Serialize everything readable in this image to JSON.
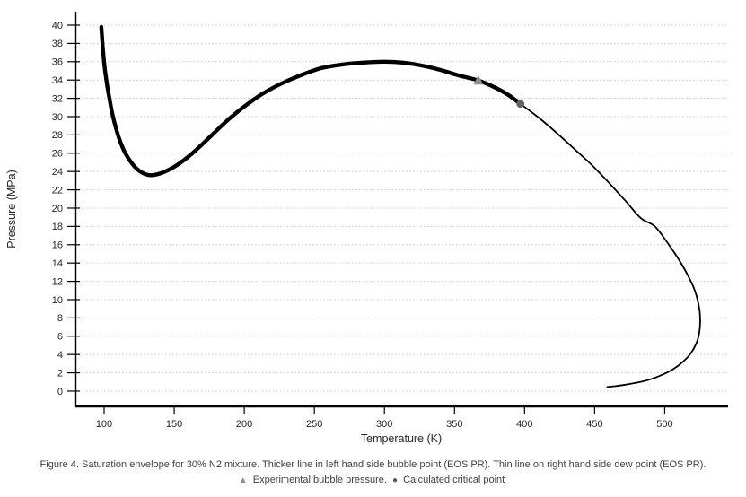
{
  "figure": {
    "caption_line1": "Figure 4. Saturation envelope for 30% N2 mixture. Thicker line in left hand side bubble point (EOS PR). Thin line on right hand side dew point (EOS PR).",
    "legend": {
      "triangle_symbol": "▲",
      "triangle_label": "Experimental bubble pressure.",
      "bullet_symbol": "●",
      "bullet_label": "Calculated critical point"
    }
  },
  "chart_data": {
    "type": "line",
    "title": "",
    "xlabel": "Temperature (K)",
    "ylabel": "Pressure (MPa)",
    "xlim": [
      79.5,
      545.2
    ],
    "ylim": [
      -1.67,
      41.47
    ],
    "x_ticks": [
      100,
      150,
      200,
      250,
      300,
      350,
      400,
      450,
      500
    ],
    "y_ticks": [
      0,
      2,
      4,
      6,
      8,
      10,
      12,
      14,
      16,
      18,
      20,
      22,
      24,
      26,
      28,
      30,
      32,
      34,
      36,
      38,
      40
    ],
    "grid": "horizontal dotted only",
    "legend_position": "none (legend described in figure caption)",
    "colors": {
      "curve": "#000000",
      "grid": "#c9c9c9",
      "axis": "#000000",
      "tick_label": "#262626",
      "triangle_marker": "#8f8f8f",
      "critical_marker": "#636363"
    },
    "series": [
      {
        "name": "Bubble point (EOS PR)",
        "style": "thick",
        "stroke_width": 4.4,
        "points": [
          [
            98,
            39.8
          ],
          [
            99.2,
            37.2
          ],
          [
            101,
            34.6
          ],
          [
            103.5,
            32.2
          ],
          [
            106.5,
            29.9
          ],
          [
            110.5,
            27.7
          ],
          [
            115.5,
            25.9
          ],
          [
            122,
            24.5
          ],
          [
            128,
            23.8
          ],
          [
            134,
            23.6
          ],
          [
            142,
            23.9
          ],
          [
            152,
            24.7
          ],
          [
            163,
            26.0
          ],
          [
            175,
            27.7
          ],
          [
            188,
            29.6
          ],
          [
            200,
            31.1
          ],
          [
            212,
            32.4
          ],
          [
            225,
            33.5
          ],
          [
            240,
            34.5
          ],
          [
            255,
            35.3
          ],
          [
            270,
            35.7
          ],
          [
            285,
            35.9
          ],
          [
            300,
            36.0
          ],
          [
            313,
            35.9
          ],
          [
            326,
            35.6
          ],
          [
            340,
            35.1
          ],
          [
            353,
            34.5
          ],
          [
            367,
            33.95
          ],
          [
            380,
            33.1
          ],
          [
            389,
            32.3
          ],
          [
            397,
            31.4
          ]
        ]
      },
      {
        "name": "Dew point (EOS PR)",
        "style": "thin",
        "stroke_width": 1.8,
        "points": [
          [
            397,
            31.4
          ],
          [
            410,
            29.9
          ],
          [
            423,
            28.2
          ],
          [
            436,
            26.4
          ],
          [
            448,
            24.7
          ],
          [
            460,
            22.8
          ],
          [
            472,
            20.8
          ],
          [
            483,
            18.9
          ],
          [
            493,
            18.0
          ],
          [
            502,
            16.2
          ],
          [
            510,
            14.4
          ],
          [
            516,
            12.8
          ],
          [
            521,
            11.2
          ],
          [
            524,
            9.6
          ],
          [
            525.3,
            8.0
          ],
          [
            524.7,
            6.4
          ],
          [
            522.5,
            5.2
          ],
          [
            518.5,
            4.1
          ],
          [
            513,
            3.2
          ],
          [
            506,
            2.4
          ],
          [
            498.5,
            1.8
          ],
          [
            490,
            1.3
          ],
          [
            481,
            0.95
          ],
          [
            472,
            0.7
          ],
          [
            465,
            0.55
          ],
          [
            459,
            0.45
          ]
        ]
      }
    ],
    "markers": [
      {
        "name": "Experimental bubble pressure",
        "shape": "triangle",
        "x": 367,
        "y": 33.95
      },
      {
        "name": "Calculated critical point",
        "shape": "circle",
        "x": 397,
        "y": 31.4
      }
    ]
  }
}
